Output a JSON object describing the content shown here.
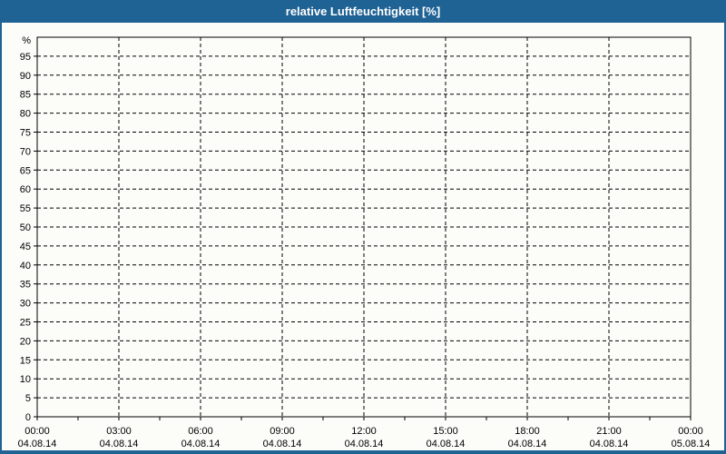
{
  "title": "relative Luftfeuchtigkeit [%]",
  "colors": {
    "titlebar_bg": "#1F6294",
    "titlebar_text": "#FFFFFF",
    "window_border": "#1F6294",
    "content_bg": "#FCFDF9",
    "axis_color": "#000000",
    "grid_color": "#000000",
    "text_color": "#000000"
  },
  "chart_data": {
    "type": "line",
    "title": "relative Luftfeuchtigkeit [%]",
    "grid": true,
    "series": [],
    "y_axis": {
      "unit_label": "%",
      "min": 0,
      "max": 100,
      "tick_step": 5,
      "tick_labels": [
        "0",
        "5",
        "10",
        "15",
        "20",
        "25",
        "30",
        "35",
        "40",
        "45",
        "50",
        "55",
        "60",
        "65",
        "70",
        "75",
        "80",
        "85",
        "90",
        "95"
      ]
    },
    "x_axis": {
      "hours_span": 24,
      "major_interval_hours": 3,
      "minor_ticks_between_majors": 1,
      "tick_times": [
        "00:00",
        "03:00",
        "06:00",
        "09:00",
        "12:00",
        "15:00",
        "18:00",
        "21:00",
        "00:00"
      ],
      "tick_dates": [
        "04.08.14",
        "04.08.14",
        "04.08.14",
        "04.08.14",
        "04.08.14",
        "04.08.14",
        "04.08.14",
        "04.08.14",
        "05.08.14"
      ]
    }
  }
}
